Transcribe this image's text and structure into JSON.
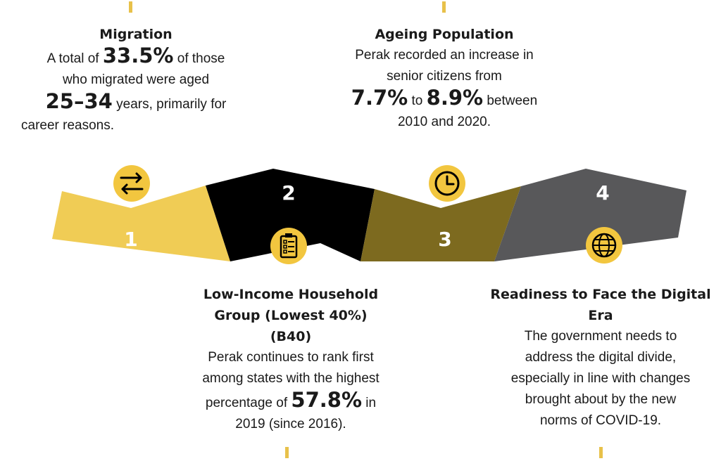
{
  "colors": {
    "segment_1": "#f0cc55",
    "segment_2": "#000000",
    "segment_3": "#7d6a1f",
    "segment_4": "#58585a",
    "icon_fill": "#f2c63f",
    "tick": "#e8c14a"
  },
  "segments": [
    {
      "number": "1",
      "icon": "swap-arrows-icon"
    },
    {
      "number": "2",
      "icon": "clipboard-checklist-icon"
    },
    {
      "number": "3",
      "icon": "clock-icon"
    },
    {
      "number": "4",
      "icon": "globe-icon"
    }
  ],
  "migration": {
    "title": "Migration",
    "t1": "A total of ",
    "big1": "33.5%",
    "t2": " of those",
    "t3": "who migrated were aged",
    "big2": "25–34",
    "t4": " years, primarily for",
    "t5": "career reasons."
  },
  "ageing": {
    "title": "Ageing Population",
    "t1": "Perak recorded an increase in",
    "t2": "senior citizens from",
    "big1": "7.7%",
    "t3": " to ",
    "big2": "8.9%",
    "t4": " between",
    "t5": "2010 and 2020."
  },
  "b40": {
    "title1": "Low-Income Household",
    "title2": "Group (Lowest 40%)",
    "title3": "(B40)",
    "t1": "Perak continues to rank first",
    "t2": "among states with the highest",
    "t3": "percentage of ",
    "big1": "57.8%",
    "t4": " in",
    "t5": "2019 (since 2016)."
  },
  "digital": {
    "title1": "Readiness to Face the Digital",
    "title2": "Era",
    "t1": "The government needs to",
    "t2": "address the digital divide,",
    "t3": "especially in line with changes",
    "t4": "brought about by the new",
    "t5": "norms of COVID-19."
  }
}
